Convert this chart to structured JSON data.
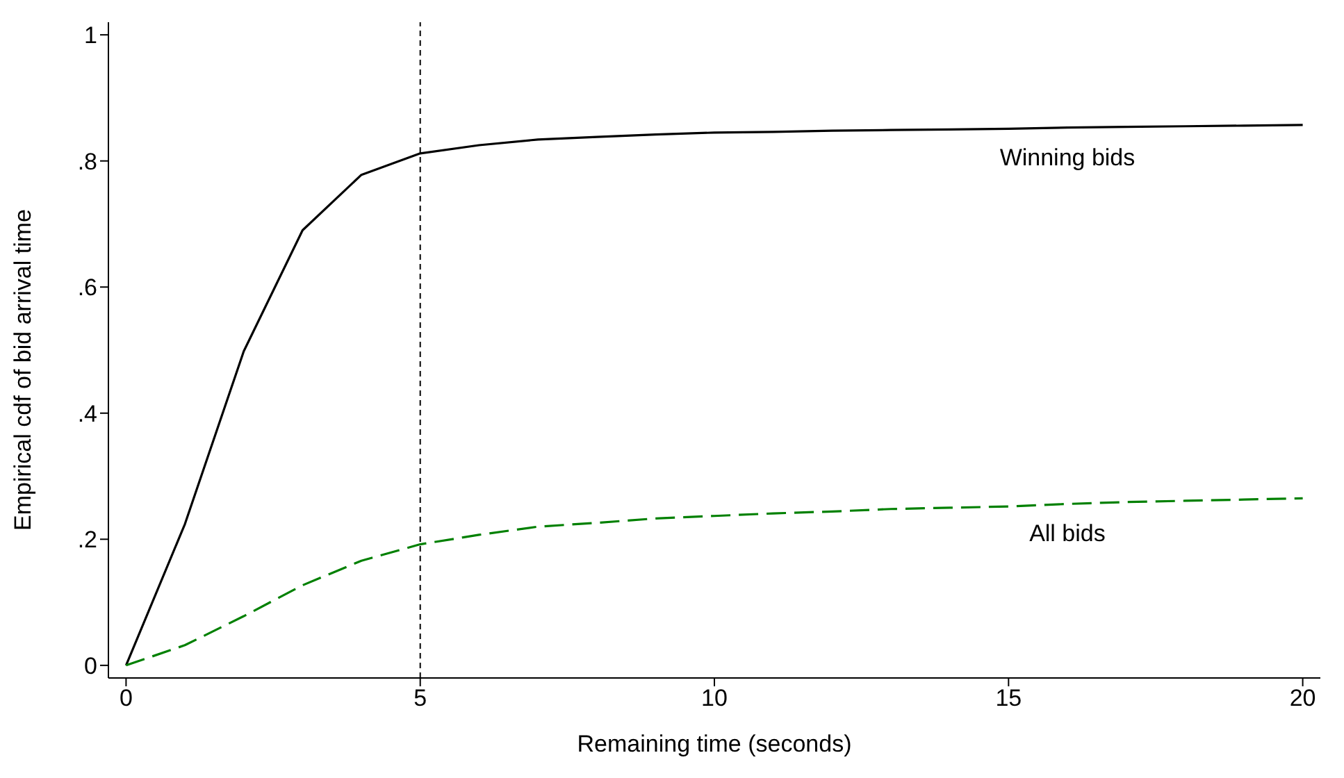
{
  "chart_data": {
    "type": "line",
    "xlabel": "Remaining time (seconds)",
    "ylabel": "Empirical cdf of bid arrival time",
    "x": [
      0,
      1,
      2,
      3,
      4,
      5,
      6,
      7,
      8,
      9,
      10,
      11,
      12,
      13,
      14,
      15,
      16,
      17,
      18,
      19,
      20
    ],
    "series": [
      {
        "name": "Winning bids",
        "color": "#000000",
        "line_style": "solid",
        "values": [
          0,
          0.224,
          0.498,
          0.69,
          0.778,
          0.812,
          0.825,
          0.834,
          0.838,
          0.842,
          0.845,
          0.846,
          0.848,
          0.849,
          0.85,
          0.851,
          0.853,
          0.854,
          0.855,
          0.856,
          0.857
        ]
      },
      {
        "name": "All bids",
        "color": "#008000",
        "line_style": "dashed",
        "values": [
          0,
          0.032,
          0.078,
          0.127,
          0.166,
          0.192,
          0.207,
          0.22,
          0.226,
          0.233,
          0.237,
          0.241,
          0.244,
          0.248,
          0.25,
          0.252,
          0.256,
          0.259,
          0.261,
          0.263,
          0.265
        ]
      }
    ],
    "xlim": [
      -0.3,
      20.3
    ],
    "ylim": [
      -0.02,
      1.02
    ],
    "xticks": [
      0,
      5,
      10,
      15,
      20
    ],
    "yticks": [
      0,
      {
        "value": 0.2,
        "label": ".2"
      },
      {
        "value": 0.4,
        "label": ".4"
      },
      {
        "value": 0.6,
        "label": ".6"
      },
      {
        "value": 0.8,
        "label": ".8"
      },
      1
    ],
    "ref_lines": [
      {
        "axis": "x",
        "value": 5,
        "line_style": "dashed",
        "color": "#000000"
      }
    ],
    "grid": false,
    "legend": false,
    "marker": "none"
  }
}
